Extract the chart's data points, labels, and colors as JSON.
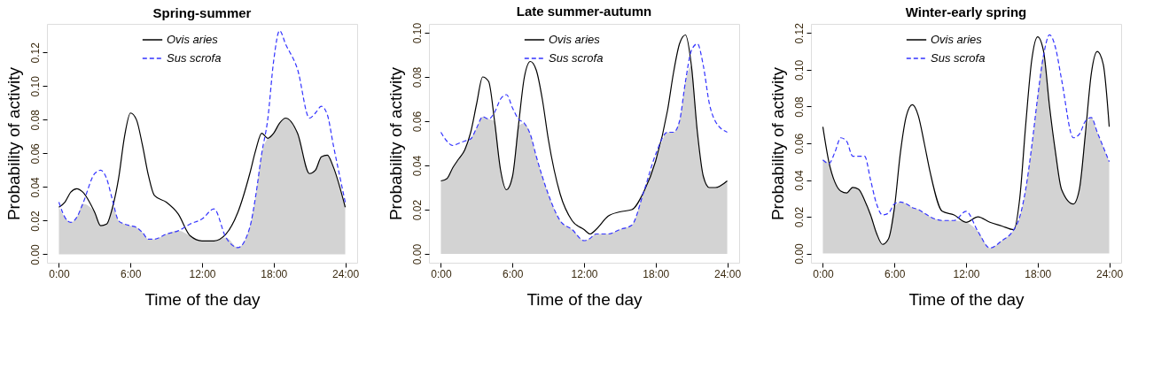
{
  "chart_data": [
    {
      "type": "line",
      "title": "Spring-summer",
      "xlabel": "Time of the day",
      "ylabel": "Probability of activity",
      "grid": false,
      "legend": "top",
      "xlim": [
        -1,
        25
      ],
      "xticks": [
        {
          "value": 0,
          "label": "0:00"
        },
        {
          "value": 6,
          "label": "6:00"
        },
        {
          "value": 12,
          "label": "12:00"
        },
        {
          "value": 18,
          "label": "18:00"
        },
        {
          "value": 24,
          "label": "24:00"
        }
      ],
      "ylim": [
        -0.005,
        0.137
      ],
      "yticks": [
        {
          "value": 0,
          "label": "0.00"
        },
        {
          "value": 0.02,
          "label": "0.02"
        },
        {
          "value": 0.04,
          "label": "0.04"
        },
        {
          "value": 0.06,
          "label": "0.06"
        },
        {
          "value": 0.08,
          "label": "0.08"
        },
        {
          "value": 0.1,
          "label": "0.10"
        },
        {
          "value": 0.12,
          "label": "0.12"
        }
      ],
      "x": [
        0,
        0.5,
        1,
        1.5,
        2,
        3,
        3.5,
        4,
        4.5,
        5,
        5.5,
        6,
        6.5,
        7,
        7.5,
        8,
        9,
        10,
        11,
        12,
        13,
        14,
        15,
        16,
        16.5,
        17,
        17.5,
        18,
        18.5,
        19,
        20,
        21,
        21.5,
        22,
        22.5,
        23,
        24
      ],
      "series": [
        {
          "type": "area",
          "color": "#d3d3d3",
          "values": [
            0.028,
            0.022,
            0.019,
            0.022,
            0.03,
            0.025,
            0.017,
            0.018,
            0.028,
            0.02,
            0.018,
            0.017,
            0.016,
            0.013,
            0.009,
            0.009,
            0.012,
            0.014,
            0.011,
            0.008,
            0.008,
            0.01,
            0.004,
            0.016,
            0.035,
            0.06,
            0.069,
            0.072,
            0.078,
            0.081,
            0.072,
            0.048,
            0.05,
            0.058,
            0.059,
            0.052,
            0.028
          ]
        },
        {
          "type": "line",
          "name": "Ovis aries",
          "color": "#000000",
          "line_style": "solid",
          "values": [
            0.028,
            0.031,
            0.037,
            0.039,
            0.037,
            0.025,
            0.017,
            0.018,
            0.028,
            0.045,
            0.07,
            0.084,
            0.08,
            0.065,
            0.047,
            0.035,
            0.031,
            0.024,
            0.011,
            0.008,
            0.008,
            0.012,
            0.025,
            0.048,
            0.062,
            0.072,
            0.069,
            0.072,
            0.078,
            0.081,
            0.072,
            0.048,
            0.05,
            0.058,
            0.059,
            0.052,
            0.028
          ]
        },
        {
          "type": "line",
          "name": "Sus scrofa",
          "color": "#3333ff",
          "line_style": "dashed",
          "values": [
            0.031,
            0.022,
            0.019,
            0.022,
            0.03,
            0.048,
            0.05,
            0.045,
            0.032,
            0.02,
            0.018,
            0.017,
            0.016,
            0.013,
            0.009,
            0.009,
            0.012,
            0.014,
            0.018,
            0.021,
            0.027,
            0.01,
            0.004,
            0.016,
            0.035,
            0.06,
            0.08,
            0.115,
            0.133,
            0.125,
            0.11,
            0.081,
            0.084,
            0.088,
            0.083,
            0.065,
            0.031
          ]
        }
      ]
    },
    {
      "type": "line",
      "title": "Late summer-autumn",
      "xlabel": "Time of the day",
      "ylabel": "Probability of activity",
      "grid": false,
      "legend": "top",
      "xlim": [
        -1,
        25
      ],
      "xticks": [
        {
          "value": 0,
          "label": "0:00"
        },
        {
          "value": 6,
          "label": "6:00"
        },
        {
          "value": 12,
          "label": "12:00"
        },
        {
          "value": 18,
          "label": "18:00"
        },
        {
          "value": 24,
          "label": "24:00"
        }
      ],
      "ylim": [
        -0.004,
        0.104
      ],
      "yticks": [
        {
          "value": 0,
          "label": "0.00"
        },
        {
          "value": 0.02,
          "label": "0.02"
        },
        {
          "value": 0.04,
          "label": "0.04"
        },
        {
          "value": 0.06,
          "label": "0.06"
        },
        {
          "value": 0.08,
          "label": "0.08"
        },
        {
          "value": 0.1,
          "label": "0.10"
        }
      ],
      "x": [
        0,
        0.5,
        1,
        1.5,
        2,
        2.5,
        3,
        3.5,
        4,
        4.5,
        5,
        5.5,
        6,
        6.5,
        7,
        7.5,
        8,
        8.5,
        9,
        10,
        11,
        12,
        12.5,
        13,
        14,
        15,
        16,
        17,
        18,
        19,
        19.5,
        20,
        20.5,
        21,
        21.5,
        22,
        22.5,
        23,
        24
      ],
      "series": [
        {
          "type": "area",
          "color": "#d3d3d3",
          "values": [
            0.033,
            0.034,
            0.039,
            0.043,
            0.047,
            0.052,
            0.057,
            0.062,
            0.061,
            0.06,
            0.038,
            0.029,
            0.035,
            0.058,
            0.059,
            0.054,
            0.044,
            0.035,
            0.027,
            0.015,
            0.011,
            0.006,
            0.007,
            0.009,
            0.009,
            0.011,
            0.013,
            0.028,
            0.042,
            0.055,
            0.055,
            0.06,
            0.078,
            0.085,
            0.055,
            0.035,
            0.03,
            0.03,
            0.033
          ]
        },
        {
          "type": "line",
          "name": "Ovis aries",
          "color": "#000000",
          "line_style": "solid",
          "values": [
            0.033,
            0.034,
            0.039,
            0.043,
            0.047,
            0.055,
            0.068,
            0.08,
            0.078,
            0.06,
            0.038,
            0.029,
            0.035,
            0.058,
            0.08,
            0.087,
            0.083,
            0.07,
            0.052,
            0.027,
            0.015,
            0.011,
            0.009,
            0.011,
            0.017,
            0.019,
            0.02,
            0.028,
            0.042,
            0.065,
            0.082,
            0.095,
            0.099,
            0.085,
            0.055,
            0.035,
            0.03,
            0.03,
            0.033
          ]
        },
        {
          "type": "line",
          "name": "Sus scrofa",
          "color": "#3333ff",
          "line_style": "dashed",
          "values": [
            0.055,
            0.051,
            0.049,
            0.05,
            0.051,
            0.052,
            0.057,
            0.062,
            0.061,
            0.064,
            0.07,
            0.072,
            0.066,
            0.061,
            0.059,
            0.054,
            0.044,
            0.035,
            0.027,
            0.015,
            0.011,
            0.006,
            0.007,
            0.009,
            0.009,
            0.011,
            0.013,
            0.028,
            0.045,
            0.055,
            0.055,
            0.06,
            0.078,
            0.092,
            0.095,
            0.085,
            0.068,
            0.06,
            0.055
          ]
        }
      ]
    },
    {
      "type": "line",
      "title": "Winter-early spring",
      "xlabel": "Time of the day",
      "ylabel": "Probability of activity",
      "grid": false,
      "legend": "top",
      "xlim": [
        -1,
        25
      ],
      "xticks": [
        {
          "value": 0,
          "label": "0:00"
        },
        {
          "value": 6,
          "label": "6:00"
        },
        {
          "value": 12,
          "label": "12:00"
        },
        {
          "value": 18,
          "label": "18:00"
        },
        {
          "value": 24,
          "label": "24:00"
        }
      ],
      "ylim": [
        -0.005,
        0.125
      ],
      "yticks": [
        {
          "value": 0,
          "label": "0.00"
        },
        {
          "value": 0.02,
          "label": "0.02"
        },
        {
          "value": 0.04,
          "label": "0.04"
        },
        {
          "value": 0.06,
          "label": "0.06"
        },
        {
          "value": 0.08,
          "label": "0.08"
        },
        {
          "value": 0.1,
          "label": "0.10"
        },
        {
          "value": 0.12,
          "label": "0.12"
        }
      ],
      "x": [
        0,
        0.5,
        1,
        1.5,
        2,
        2.5,
        3,
        3.5,
        4,
        4.5,
        5,
        5.5,
        6,
        6.5,
        7,
        7.5,
        8,
        8.5,
        9,
        10,
        11,
        12,
        13,
        14,
        15,
        16,
        16.5,
        17,
        17.5,
        18,
        18.5,
        19,
        19.5,
        20,
        21,
        21.5,
        22,
        22.5,
        23,
        23.5,
        24
      ],
      "series": [
        {
          "type": "area",
          "color": "#d3d3d3",
          "values": [
            0.051,
            0.049,
            0.039,
            0.034,
            0.033,
            0.036,
            0.035,
            0.029,
            0.021,
            0.011,
            0.005,
            0.008,
            0.025,
            0.028,
            0.027,
            0.025,
            0.024,
            0.022,
            0.02,
            0.018,
            0.018,
            0.017,
            0.012,
            0.003,
            0.007,
            0.013,
            0.02,
            0.035,
            0.058,
            0.085,
            0.108,
            0.08,
            0.055,
            0.035,
            0.027,
            0.035,
            0.065,
            0.074,
            0.066,
            0.058,
            0.05
          ]
        },
        {
          "type": "line",
          "name": "Ovis aries",
          "color": "#000000",
          "line_style": "solid",
          "values": [
            0.069,
            0.05,
            0.039,
            0.034,
            0.033,
            0.036,
            0.035,
            0.029,
            0.021,
            0.011,
            0.005,
            0.008,
            0.025,
            0.055,
            0.075,
            0.081,
            0.075,
            0.06,
            0.044,
            0.023,
            0.021,
            0.017,
            0.02,
            0.017,
            0.015,
            0.013,
            0.03,
            0.07,
            0.105,
            0.118,
            0.11,
            0.08,
            0.055,
            0.035,
            0.027,
            0.035,
            0.065,
            0.098,
            0.11,
            0.103,
            0.069
          ]
        },
        {
          "type": "line",
          "name": "Sus scrofa",
          "color": "#3333ff",
          "line_style": "dashed",
          "values": [
            0.051,
            0.049,
            0.055,
            0.063,
            0.061,
            0.053,
            0.053,
            0.053,
            0.04,
            0.027,
            0.021,
            0.022,
            0.027,
            0.028,
            0.027,
            0.025,
            0.024,
            0.022,
            0.02,
            0.018,
            0.018,
            0.023,
            0.012,
            0.003,
            0.007,
            0.013,
            0.02,
            0.035,
            0.058,
            0.085,
            0.108,
            0.119,
            0.112,
            0.095,
            0.063,
            0.065,
            0.072,
            0.074,
            0.066,
            0.058,
            0.05
          ]
        }
      ]
    }
  ]
}
